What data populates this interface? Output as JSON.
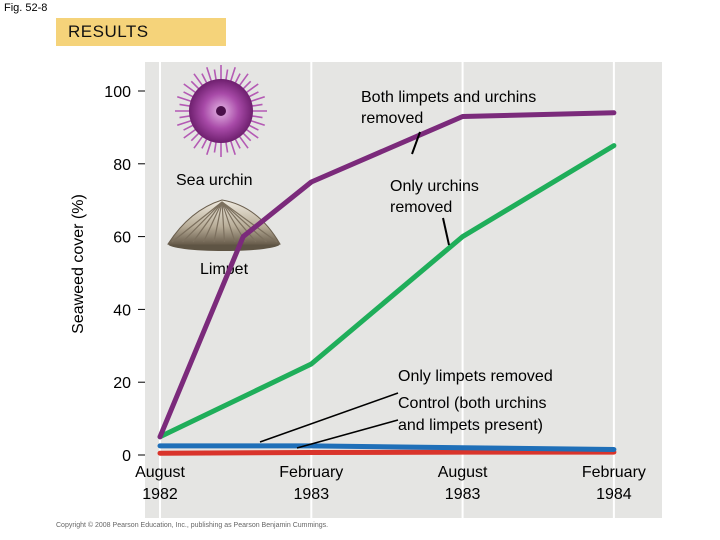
{
  "figure_label": "Fig. 52-8",
  "banner": "RESULTS",
  "copyright": "Copyright © 2008 Pearson Education, Inc., publishing as Pearson Benjamin Cummings.",
  "illustrations": {
    "urchin_label": "Sea urchin",
    "limpet_label": "Limpet"
  },
  "chart_data": {
    "type": "line",
    "ylabel": "Seaweed cover (%)",
    "xlabel": "",
    "ylim": [
      0,
      100
    ],
    "yticks": [
      0,
      20,
      40,
      60,
      80,
      100
    ],
    "categories": [
      [
        "August",
        "1982"
      ],
      [
        "February",
        "1983"
      ],
      [
        "August",
        "1983"
      ],
      [
        "February",
        "1984"
      ]
    ],
    "series": [
      {
        "name": "Both limpets and urchins removed",
        "color": "#7b2a7b",
        "x": [
          0,
          0.55,
          1.0,
          2.0,
          3.0
        ],
        "values": [
          5,
          60,
          75,
          93,
          94
        ]
      },
      {
        "name": "Only urchins removed",
        "color": "#1fae5a",
        "x": [
          0,
          1.0,
          2.0,
          3.0
        ],
        "values": [
          5,
          25,
          60,
          85
        ]
      },
      {
        "name": "Only limpets removed",
        "color": "#1f6fb8",
        "x": [
          0,
          1.0,
          2.0,
          3.0
        ],
        "values": [
          2.5,
          2.5,
          2.0,
          1.5
        ]
      },
      {
        "name": "Control (both urchins and limpets present)",
        "color": "#d9342b",
        "x": [
          0,
          1.0,
          2.0,
          3.0
        ],
        "values": [
          0.5,
          0.7,
          0.8,
          0.8
        ]
      }
    ],
    "annotations": [
      {
        "lines": [
          "Both limpets and urchins",
          "removed"
        ]
      },
      {
        "lines": [
          "Only urchins",
          "removed"
        ]
      },
      {
        "lines": [
          "Only limpets removed"
        ]
      },
      {
        "lines": [
          "Control (both urchins",
          "and limpets present)"
        ]
      }
    ]
  }
}
